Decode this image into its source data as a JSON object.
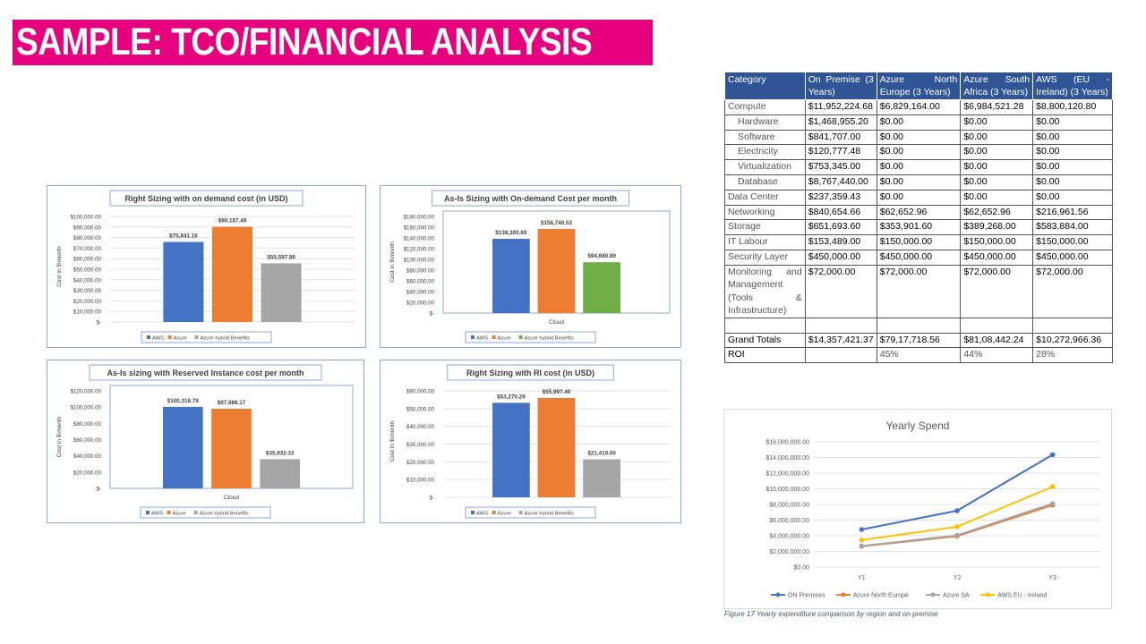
{
  "slide_title": "SAMPLE: TCO/FINANCIAL ANALYSIS",
  "table": {
    "headers": [
      "Category",
      "On Premise (3 Years)",
      "Azure North Europe (3 Years)",
      "Azure South Africa (3 Years)",
      "AWS (EU - Ireland) (3 Years)"
    ],
    "rows": [
      {
        "category": "Compute",
        "sub": false,
        "values": [
          "$11,952,224.68",
          "$6,829,164.00",
          "$6,984,521.28",
          "$8,800,120.80"
        ]
      },
      {
        "category": "Hardware",
        "sub": true,
        "values": [
          "$1,468,955.20",
          "$0.00",
          "$0.00",
          "$0.00"
        ]
      },
      {
        "category": "Software",
        "sub": true,
        "values": [
          "$841,707.00",
          "$0.00",
          "$0.00",
          "$0.00"
        ]
      },
      {
        "category": "Electricity",
        "sub": true,
        "values": [
          "$120,777.48",
          "$0.00",
          "$0.00",
          "$0.00"
        ]
      },
      {
        "category": "Virtualization",
        "sub": true,
        "values": [
          "$753,345.00",
          "$0.00",
          "$0.00",
          "$0.00"
        ]
      },
      {
        "category": "Database",
        "sub": true,
        "values": [
          "$8,767,440.00",
          "$0.00",
          "$0.00",
          "$0.00"
        ]
      },
      {
        "category": "Data Center",
        "sub": false,
        "values": [
          "$237,359.43",
          "$0.00",
          "$0.00",
          "$0.00"
        ]
      },
      {
        "category": "Networking",
        "sub": false,
        "values": [
          "$840,654.66",
          "$62,652.96",
          "$62,652.96",
          "$216,961.56"
        ]
      },
      {
        "category": "Storage",
        "sub": false,
        "values": [
          "$651,693.60",
          "$353,901.60",
          "$389,268.00",
          "$583,884.00"
        ]
      },
      {
        "category": "IT Labour",
        "sub": false,
        "values": [
          "$153,489.00",
          "$150,000.00",
          "$150,000.00",
          "$150,000.00"
        ]
      },
      {
        "category": "Security Layer",
        "sub": false,
        "values": [
          "$450,000.00",
          "$450,000.00",
          "$450,000.00",
          "$450,000.00"
        ]
      },
      {
        "category": "Monitoring and Management (Tools & Infrastructure)",
        "sub": false,
        "values": [
          "$72,000.00",
          "$72,000.00",
          "$72,000.00",
          "$72,000.00"
        ]
      }
    ],
    "grand_totals": {
      "label": "Grand Totals",
      "values": [
        "$14,357,421.37",
        "$79,17,718.56",
        "$81,08,442.24",
        "$10,272,966.36"
      ]
    },
    "roi": {
      "label": "ROI",
      "values": [
        "",
        "45%",
        "44%",
        "28%"
      ]
    }
  },
  "figure_caption": "Figure 17 Yearly expenditure comparison by region and on-premise",
  "chart_data": [
    {
      "type": "bar",
      "id": "c1",
      "title": "Right Sizing with on demand cost (in USD)",
      "ylabel": "Cost in $\\month",
      "xlabel": "",
      "ylim": [
        0,
        100000
      ],
      "yticks": [
        0,
        10000,
        20000,
        30000,
        40000,
        50000,
        60000,
        70000,
        80000,
        90000,
        100000
      ],
      "categories": [
        "AWS",
        "Azure",
        "Azure hybrid Benefits"
      ],
      "values": [
        75841.16,
        90187.49,
        55597.89
      ],
      "colors": [
        "#4472c4",
        "#ed7d31",
        "#a5a5a5"
      ],
      "grid": true,
      "legend": "bottom"
    },
    {
      "type": "bar",
      "id": "c2",
      "title": "As-Is Sizing with On-demand Cost per month",
      "ylabel": "Cost in $\\month",
      "xlabel": "Cloud",
      "ylim": [
        0,
        180000
      ],
      "yticks": [
        0,
        20000,
        40000,
        60000,
        80000,
        100000,
        120000,
        140000,
        160000,
        180000
      ],
      "categories": [
        "AWS",
        "Azure",
        "Azure hybrid Benefits"
      ],
      "values": [
        138300.69,
        156740.53,
        94680.89
      ],
      "colors": [
        "#4472c4",
        "#ed7d31",
        "#70ad47"
      ],
      "grid": false,
      "legend": "bottom"
    },
    {
      "type": "bar",
      "id": "c3",
      "title": "As-Is sizing with Reserved Instance cost per month",
      "ylabel": "Cost in $\\month",
      "xlabel": "Cloud",
      "ylim": [
        0,
        120000
      ],
      "yticks": [
        0,
        20000,
        40000,
        60000,
        80000,
        100000,
        120000
      ],
      "categories": [
        "AWS",
        "Azure",
        "Azure hybrid Benefits"
      ],
      "values": [
        100318.79,
        97988.17,
        35932.33
      ],
      "colors": [
        "#4472c4",
        "#ed7d31",
        "#a5a5a5"
      ],
      "grid": false,
      "legend": "bottom"
    },
    {
      "type": "bar",
      "id": "c4",
      "title": "Right Sizing with RI cost  (in USD)",
      "ylabel": "Cost in $\\month",
      "xlabel": "",
      "ylim": [
        0,
        60000
      ],
      "yticks": [
        0,
        10000,
        20000,
        30000,
        40000,
        50000,
        60000
      ],
      "categories": [
        "AWS",
        "Azure",
        "Azure hybrid Benefits"
      ],
      "values": [
        53270.29,
        55997.4,
        21410.0
      ],
      "colors": [
        "#4472c4",
        "#ed7d31",
        "#a5a5a5"
      ],
      "grid": true,
      "legend": "bottom"
    },
    {
      "type": "line",
      "id": "c5",
      "title": "Yearly Spend",
      "x": [
        "Y1",
        "Y2",
        "Y3"
      ],
      "ylim": [
        0,
        16000000
      ],
      "yticks": [
        0,
        2000000,
        4000000,
        6000000,
        8000000,
        10000000,
        12000000,
        14000000,
        16000000
      ],
      "grid": true,
      "legend": "bottom",
      "series": [
        {
          "name": "ON Premises",
          "values": [
            4800000,
            7200000,
            14357421
          ],
          "color": "#4472c4"
        },
        {
          "name": "Azure North Europe",
          "values": [
            2650000,
            3950000,
            7917718
          ],
          "color": "#ed7d31"
        },
        {
          "name": "Azure SA",
          "values": [
            2700000,
            4050000,
            8108442
          ],
          "color": "#a5a5a5"
        },
        {
          "name": "AWS EU - Ireland",
          "values": [
            3450000,
            5150000,
            10272966
          ],
          "color": "#ffc000"
        }
      ]
    }
  ]
}
